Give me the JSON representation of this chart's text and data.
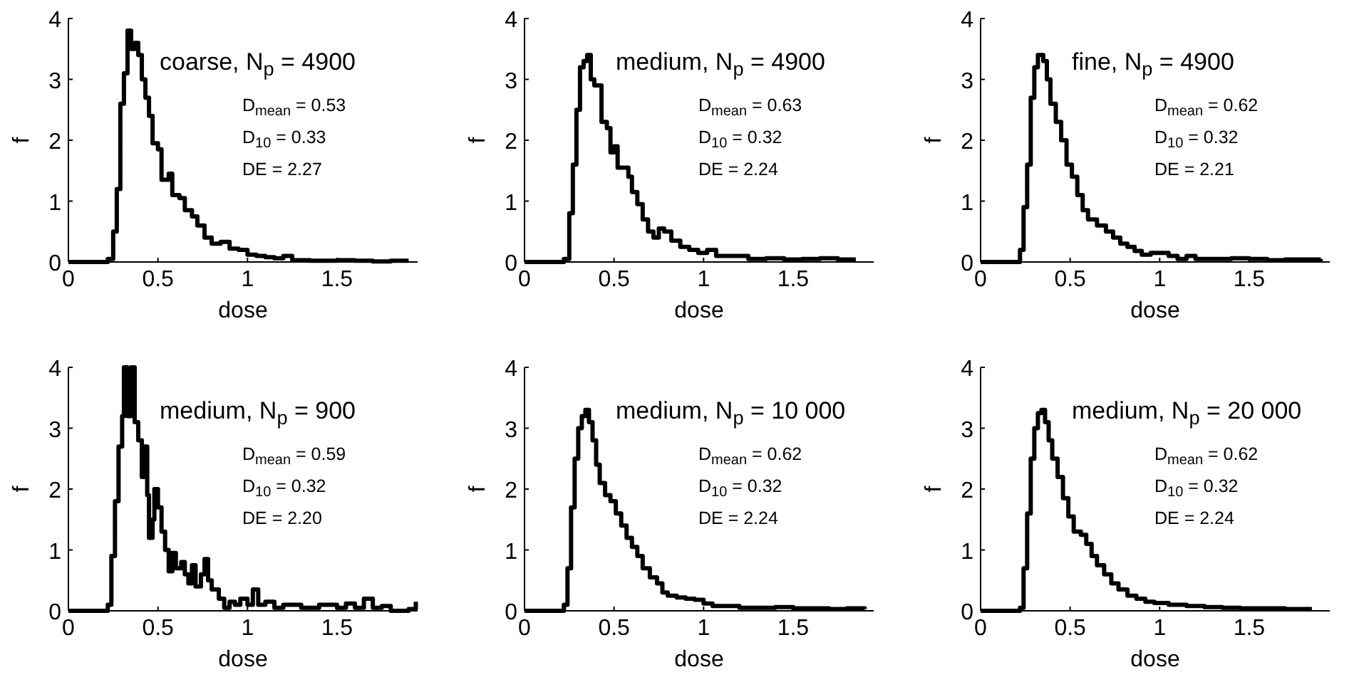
{
  "chart_data": [
    {
      "type": "step",
      "title": "coarse, N$_{p}$ = 4900",
      "xlabel": "dose",
      "ylabel": "f",
      "annotations": [
        "D$_{mean}$ = 0.53",
        "D$_{10}$ = 0.33",
        "DE = 2.27"
      ],
      "xlim": [
        0,
        1.95
      ],
      "ylim": [
        0,
        4
      ],
      "xticks": [
        0,
        0.5,
        1,
        1.5
      ],
      "yticks": [
        0,
        1,
        2,
        3,
        4
      ],
      "series": [
        {
          "color": "#000000",
          "x": [
            0,
            0.22,
            0.25,
            0.27,
            0.29,
            0.31,
            0.33,
            0.35,
            0.37,
            0.39,
            0.41,
            0.43,
            0.45,
            0.47,
            0.5,
            0.52,
            0.56,
            0.58,
            0.62,
            0.65,
            0.69,
            0.72,
            0.76,
            0.8,
            0.85,
            0.9,
            0.95,
            1.0,
            1.05,
            1.1,
            1.15,
            1.2,
            1.25,
            1.35,
            1.5,
            1.6,
            1.7,
            1.8,
            1.9
          ],
          "values": [
            0,
            0.05,
            0.5,
            1.2,
            2.6,
            3.1,
            3.8,
            3.5,
            3.6,
            3.4,
            3.0,
            2.7,
            2.4,
            1.95,
            1.85,
            1.35,
            1.45,
            1.1,
            1.05,
            0.85,
            0.75,
            0.6,
            0.4,
            0.3,
            0.33,
            0.22,
            0.2,
            0.12,
            0.1,
            0.08,
            0.06,
            0.1,
            0.03,
            0.02,
            0.03,
            0.02,
            0.01,
            0.02,
            0.02
          ]
        }
      ]
    },
    {
      "type": "step",
      "title": "medium, N$_{p}$ = 4900",
      "xlabel": "dose",
      "ylabel": "f",
      "annotations": [
        "D$_{mean}$ = 0.63",
        "D$_{10}$ = 0.32",
        "DE = 2.24"
      ],
      "xlim": [
        0,
        1.95
      ],
      "ylim": [
        0,
        4
      ],
      "xticks": [
        0,
        0.5,
        1,
        1.5
      ],
      "yticks": [
        0,
        1,
        2,
        3,
        4
      ],
      "series": [
        {
          "color": "#000000",
          "x": [
            0,
            0.22,
            0.25,
            0.27,
            0.29,
            0.31,
            0.33,
            0.35,
            0.37,
            0.39,
            0.41,
            0.43,
            0.46,
            0.48,
            0.5,
            0.52,
            0.55,
            0.58,
            0.6,
            0.63,
            0.66,
            0.69,
            0.72,
            0.75,
            0.78,
            0.82,
            0.87,
            0.92,
            0.97,
            1.02,
            1.07,
            1.15,
            1.25,
            1.35,
            1.45,
            1.55,
            1.65,
            1.75,
            1.85
          ],
          "values": [
            0,
            0.05,
            0.8,
            1.6,
            2.5,
            3.2,
            3.3,
            3.4,
            3.0,
            2.9,
            2.9,
            2.3,
            2.2,
            1.8,
            1.9,
            1.55,
            1.55,
            1.4,
            1.15,
            0.95,
            0.7,
            0.5,
            0.4,
            0.55,
            0.5,
            0.35,
            0.25,
            0.2,
            0.15,
            0.2,
            0.1,
            0.1,
            0.05,
            0.06,
            0.04,
            0.05,
            0.06,
            0.04,
            0.04
          ]
        }
      ]
    },
    {
      "type": "step",
      "title": "fine, N$_{p}$ = 4900",
      "xlabel": "dose",
      "ylabel": "f",
      "annotations": [
        "D$_{mean}$ = 0.62",
        "D$_{10}$ = 0.32",
        "DE = 2.21"
      ],
      "xlim": [
        0,
        1.95
      ],
      "ylim": [
        0,
        4
      ],
      "xticks": [
        0,
        0.5,
        1,
        1.5
      ],
      "yticks": [
        0,
        1,
        2,
        3,
        4
      ],
      "series": [
        {
          "color": "#000000",
          "x": [
            0,
            0.22,
            0.24,
            0.26,
            0.28,
            0.3,
            0.32,
            0.35,
            0.37,
            0.39,
            0.42,
            0.45,
            0.48,
            0.51,
            0.54,
            0.57,
            0.6,
            0.65,
            0.7,
            0.74,
            0.78,
            0.82,
            0.86,
            0.9,
            0.95,
            1.0,
            1.05,
            1.1,
            1.15,
            1.2,
            1.3,
            1.4,
            1.5,
            1.6,
            1.7,
            1.8,
            1.9
          ],
          "values": [
            0,
            0.2,
            0.9,
            1.6,
            2.7,
            3.2,
            3.4,
            3.3,
            3.0,
            2.6,
            2.3,
            2.0,
            1.6,
            1.4,
            1.1,
            0.85,
            0.7,
            0.6,
            0.5,
            0.4,
            0.3,
            0.25,
            0.18,
            0.12,
            0.15,
            0.15,
            0.1,
            0.05,
            0.1,
            0.05,
            0.05,
            0.06,
            0.05,
            0.03,
            0.04,
            0.04,
            0.05
          ]
        }
      ]
    },
    {
      "type": "step",
      "title": "medium, N$_{p}$ = 900",
      "xlabel": "dose",
      "ylabel": "f",
      "annotations": [
        "D$_{mean}$ = 0.59",
        "D$_{10}$ = 0.32",
        "DE = 2.20"
      ],
      "xlim": [
        0,
        1.95
      ],
      "ylim": [
        0,
        4
      ],
      "xticks": [
        0,
        0.5,
        1,
        1.5
      ],
      "yticks": [
        0,
        1,
        2,
        3,
        4
      ],
      "series": [
        {
          "color": "#000000",
          "x": [
            0,
            0.22,
            0.24,
            0.26,
            0.28,
            0.3,
            0.31,
            0.33,
            0.35,
            0.37,
            0.39,
            0.41,
            0.42,
            0.44,
            0.45,
            0.47,
            0.48,
            0.5,
            0.52,
            0.54,
            0.56,
            0.58,
            0.6,
            0.63,
            0.65,
            0.67,
            0.69,
            0.71,
            0.74,
            0.76,
            0.78,
            0.8,
            0.84,
            0.87,
            0.9,
            0.93,
            0.96,
            1.0,
            1.03,
            1.06,
            1.1,
            1.15,
            1.2,
            1.3,
            1.4,
            1.5,
            1.55,
            1.6,
            1.65,
            1.7,
            1.75,
            1.8,
            1.9,
            1.94
          ],
          "values": [
            0,
            0.1,
            0.9,
            1.8,
            2.7,
            3.2,
            4,
            3.2,
            4,
            3.1,
            2.8,
            2.2,
            2.7,
            1.9,
            1.2,
            1.5,
            2.0,
            1.7,
            1.3,
            1.0,
            0.65,
            0.95,
            0.7,
            0.8,
            0.6,
            0.45,
            0.75,
            0.4,
            0.6,
            0.85,
            0.5,
            0.35,
            0.2,
            0.05,
            0.15,
            0.1,
            0.2,
            0.1,
            0.35,
            0.1,
            0.15,
            0.05,
            0.1,
            0.05,
            0.1,
            0.05,
            0.12,
            0.05,
            0.2,
            0.05,
            0.08,
            0,
            0.03,
            0.15
          ]
        }
      ]
    },
    {
      "type": "step",
      "title": "medium, N$_{p}$ = 10 000",
      "xlabel": "dose",
      "ylabel": "f",
      "annotations": [
        "D$_{mean}$ = 0.62",
        "D$_{10}$ = 0.32",
        "DE = 2.24"
      ],
      "xlim": [
        0,
        1.95
      ],
      "ylim": [
        0,
        4
      ],
      "xticks": [
        0,
        0.5,
        1,
        1.5
      ],
      "yticks": [
        0,
        1,
        2,
        3,
        4
      ],
      "series": [
        {
          "color": "#000000",
          "x": [
            0,
            0.22,
            0.24,
            0.26,
            0.28,
            0.3,
            0.32,
            0.34,
            0.36,
            0.38,
            0.4,
            0.42,
            0.45,
            0.48,
            0.51,
            0.54,
            0.57,
            0.6,
            0.63,
            0.66,
            0.7,
            0.74,
            0.77,
            0.8,
            0.85,
            0.9,
            0.95,
            1.0,
            1.05,
            1.1,
            1.2,
            1.3,
            1.4,
            1.5,
            1.6,
            1.7,
            1.8,
            1.9
          ],
          "values": [
            0,
            0.1,
            0.7,
            1.7,
            2.5,
            3.0,
            3.2,
            3.3,
            3.1,
            2.8,
            2.4,
            2.1,
            1.9,
            1.8,
            1.6,
            1.4,
            1.2,
            1.05,
            0.9,
            0.7,
            0.55,
            0.45,
            0.3,
            0.25,
            0.22,
            0.2,
            0.18,
            0.12,
            0.08,
            0.08,
            0.05,
            0.05,
            0.06,
            0.04,
            0.04,
            0.03,
            0.04,
            0.03
          ]
        }
      ]
    },
    {
      "type": "step",
      "title": "medium, N$_{p}$ = 20 000",
      "xlabel": "dose",
      "ylabel": "f",
      "annotations": [
        "D$_{mean}$ = 0.62",
        "D$_{10}$ = 0.32",
        "DE = 2.24"
      ],
      "xlim": [
        0,
        1.95
      ],
      "ylim": [
        0,
        4
      ],
      "xticks": [
        0,
        0.5,
        1,
        1.5
      ],
      "yticks": [
        0,
        1,
        2,
        3,
        4
      ],
      "series": [
        {
          "color": "#000000",
          "x": [
            0,
            0.22,
            0.24,
            0.26,
            0.28,
            0.3,
            0.32,
            0.34,
            0.36,
            0.38,
            0.4,
            0.43,
            0.46,
            0.49,
            0.52,
            0.56,
            0.59,
            0.62,
            0.65,
            0.69,
            0.73,
            0.77,
            0.82,
            0.87,
            0.92,
            0.97,
            1.05,
            1.15,
            1.25,
            1.35,
            1.45,
            1.55,
            1.7,
            1.85
          ],
          "values": [
            0,
            0.05,
            0.7,
            1.6,
            2.5,
            3.0,
            3.25,
            3.3,
            3.1,
            2.8,
            2.5,
            2.2,
            1.85,
            1.55,
            1.3,
            1.25,
            1.1,
            0.9,
            0.75,
            0.6,
            0.45,
            0.35,
            0.25,
            0.2,
            0.15,
            0.13,
            0.1,
            0.08,
            0.06,
            0.05,
            0.04,
            0.04,
            0.03,
            0.03
          ]
        }
      ]
    }
  ]
}
